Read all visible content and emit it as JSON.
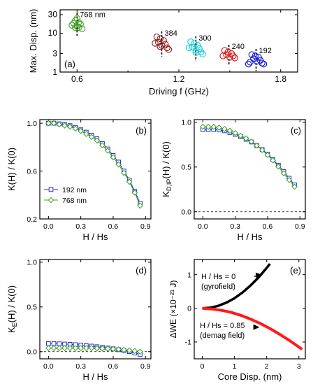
{
  "colors": {
    "blue": "#2030d0",
    "green": "#3ca020",
    "darkred": "#8b1a1a",
    "cyan": "#10d0dc",
    "red": "#e01010",
    "navy": "#1010e0",
    "black": "#000000",
    "redline": "#ff1a1a"
  },
  "chart_data": [
    {
      "id": "a",
      "type": "scatter",
      "panel_label": "(a)",
      "xlabel": "Driving f (GHz)",
      "ylabel": "Max. Disp. (nm)",
      "xlim": [
        0.5,
        1.9
      ],
      "ylim": [
        1,
        40
      ],
      "yscale": "log",
      "xticks": [
        "0.6",
        "1.2",
        "1.8"
      ],
      "yticks": [
        "1",
        "3",
        "10",
        "30"
      ],
      "series": [
        {
          "name": "768 nm",
          "color": "green",
          "x": [
            0.6,
            0.59,
            0.61,
            0.58,
            0.62,
            0.6,
            0.57,
            0.59,
            0.61,
            0.63
          ],
          "y": [
            24,
            21,
            19,
            18,
            17,
            15,
            16,
            14,
            14,
            13
          ]
        },
        {
          "name": "384",
          "color": "darkred",
          "x": [
            1.07,
            1.09,
            1.11,
            1.08,
            1.12,
            1.1,
            1.06,
            1.13,
            1.09,
            1.14
          ],
          "y": [
            8,
            7.2,
            6.5,
            5.8,
            5.2,
            4.8,
            5.5,
            4.2,
            4.5,
            3.8
          ]
        },
        {
          "name": "300",
          "color": "cyan",
          "x": [
            1.27,
            1.29,
            1.31,
            1.28,
            1.32,
            1.3,
            1.26,
            1.33,
            1.3,
            1.34
          ],
          "y": [
            6,
            5.4,
            4.9,
            4.4,
            4.0,
            3.6,
            4.2,
            3.3,
            3.2,
            2.9
          ]
        },
        {
          "name": "240",
          "color": "red",
          "x": [
            1.47,
            1.49,
            1.51,
            1.48,
            1.52,
            1.5,
            1.46,
            1.53
          ],
          "y": [
            3.6,
            3.3,
            3.0,
            2.8,
            2.6,
            2.4,
            2.6,
            2.3
          ]
        },
        {
          "name": "192",
          "color": "navy",
          "x": [
            1.63,
            1.65,
            1.67,
            1.64,
            1.68,
            1.66,
            1.62,
            1.69,
            1.61,
            1.7
          ],
          "y": [
            2.8,
            2.6,
            2.4,
            2.2,
            2.0,
            1.9,
            1.8,
            1.7,
            1.6,
            1.6
          ]
        }
      ]
    },
    {
      "id": "b",
      "type": "line",
      "panel_label": "(b)",
      "xlabel": "H / Hs",
      "ylabel": "K(H) / K(0)",
      "xlim": [
        -0.08,
        0.95
      ],
      "ylim": [
        0.2,
        1.03
      ],
      "xticks": [
        "0.0",
        "0.3",
        "0.6",
        "0.9"
      ],
      "yticks": [
        "0.2",
        "0.6",
        "1.0"
      ],
      "legend": "lower-left",
      "x": [
        0.0,
        0.05,
        0.1,
        0.15,
        0.2,
        0.25,
        0.3,
        0.35,
        0.4,
        0.45,
        0.5,
        0.55,
        0.6,
        0.65,
        0.7,
        0.75,
        0.8,
        0.85
      ],
      "series": [
        {
          "name": "192 nm",
          "color": "blue",
          "marker": "square",
          "values": [
            1.0,
            1.0,
            0.995,
            0.99,
            0.98,
            0.965,
            0.945,
            0.925,
            0.9,
            0.87,
            0.83,
            0.785,
            0.73,
            0.675,
            0.6,
            0.525,
            0.43,
            0.33
          ]
        },
        {
          "name": "768 nm",
          "color": "green",
          "marker": "diamond",
          "values": [
            1.0,
            1.0,
            0.99,
            0.98,
            0.97,
            0.955,
            0.935,
            0.91,
            0.885,
            0.855,
            0.815,
            0.77,
            0.715,
            0.655,
            0.585,
            0.51,
            0.42,
            0.31
          ]
        }
      ]
    },
    {
      "id": "c",
      "type": "line",
      "panel_label": "(c)",
      "xlabel": "H / Hs",
      "ylabel": "K_D,IP(H) / K(0)",
      "xlim": [
        -0.08,
        0.95
      ],
      "ylim": [
        -0.08,
        1.03
      ],
      "xticks": [
        "0.0",
        "0.3",
        "0.6",
        "0.9"
      ],
      "yticks": [
        "0.0",
        "0.5",
        "1.0"
      ],
      "hline": 0,
      "x": [
        0.0,
        0.05,
        0.1,
        0.15,
        0.2,
        0.25,
        0.3,
        0.35,
        0.4,
        0.45,
        0.5,
        0.55,
        0.6,
        0.65,
        0.7,
        0.75,
        0.8,
        0.85
      ],
      "series": [
        {
          "name": "192 nm",
          "color": "blue",
          "marker": "square",
          "values": [
            0.92,
            0.92,
            0.92,
            0.915,
            0.905,
            0.885,
            0.865,
            0.84,
            0.81,
            0.78,
            0.74,
            0.695,
            0.645,
            0.585,
            0.52,
            0.45,
            0.375,
            0.3
          ]
        },
        {
          "name": "768 nm",
          "color": "green",
          "marker": "diamond",
          "values": [
            0.95,
            0.95,
            0.95,
            0.94,
            0.925,
            0.905,
            0.88,
            0.85,
            0.82,
            0.785,
            0.74,
            0.69,
            0.635,
            0.575,
            0.505,
            0.43,
            0.355,
            0.28
          ]
        }
      ]
    },
    {
      "id": "d",
      "type": "line",
      "panel_label": "(d)",
      "xlabel": "H / Hs",
      "ylabel": "K_E(H) / K(0)",
      "xlim": [
        -0.08,
        0.95
      ],
      "ylim": [
        -0.08,
        1.03
      ],
      "xticks": [
        "0.0",
        "0.3",
        "0.6",
        "0.9"
      ],
      "yticks": [
        "0.0",
        "0.5",
        "1.0"
      ],
      "hline": 0,
      "x": [
        0.0,
        0.05,
        0.1,
        0.15,
        0.2,
        0.25,
        0.3,
        0.35,
        0.4,
        0.45,
        0.5,
        0.55,
        0.6,
        0.65,
        0.7,
        0.75,
        0.8,
        0.85
      ],
      "series": [
        {
          "name": "192 nm",
          "color": "blue",
          "marker": "square",
          "values": [
            0.09,
            0.09,
            0.088,
            0.085,
            0.082,
            0.078,
            0.074,
            0.068,
            0.062,
            0.055,
            0.048,
            0.04,
            0.032,
            0.022,
            0.012,
            0.0,
            -0.015,
            -0.03
          ]
        },
        {
          "name": "768 nm",
          "color": "green",
          "marker": "diamond",
          "values": [
            0.04,
            0.04,
            0.04,
            0.04,
            0.04,
            0.04,
            0.04,
            0.04,
            0.04,
            0.038,
            0.036,
            0.034,
            0.03,
            0.026,
            0.02,
            0.014,
            0.008,
            0.0
          ]
        }
      ]
    },
    {
      "id": "e",
      "type": "line",
      "panel_label": "(e)",
      "xlabel": "Core Disp. (nm)",
      "ylabel": "ΔWE (×10⁻²¹ J)",
      "xlim": [
        -0.25,
        3.2
      ],
      "ylim": [
        -1.5,
        1.45
      ],
      "xticks": [
        "0",
        "1",
        "2",
        "3"
      ],
      "yticks": [
        "-1",
        "0",
        "1"
      ],
      "annotations": [
        {
          "text": "H / Hs = 0",
          "sub": "(gyrofield)"
        },
        {
          "text": "H / Hs = 0.85",
          "sub": "(demag field)"
        }
      ],
      "series": [
        {
          "name": "H / Hs = 0",
          "color": "black",
          "x": [
            0,
            0.25,
            0.5,
            0.75,
            1.0,
            1.25,
            1.5,
            1.75,
            2.0,
            2.1
          ],
          "values": [
            0,
            0.018,
            0.075,
            0.17,
            0.3,
            0.47,
            0.68,
            0.92,
            1.2,
            1.32
          ]
        },
        {
          "name": "H / Hs = 0.85",
          "color": "redline",
          "x": [
            0,
            0.3,
            0.6,
            0.9,
            1.2,
            1.5,
            1.8,
            2.1,
            2.4,
            2.7,
            3.0,
            3.1
          ],
          "values": [
            0,
            -0.02,
            -0.06,
            -0.12,
            -0.21,
            -0.32,
            -0.45,
            -0.6,
            -0.77,
            -0.95,
            -1.15,
            -1.22
          ]
        }
      ]
    }
  ]
}
